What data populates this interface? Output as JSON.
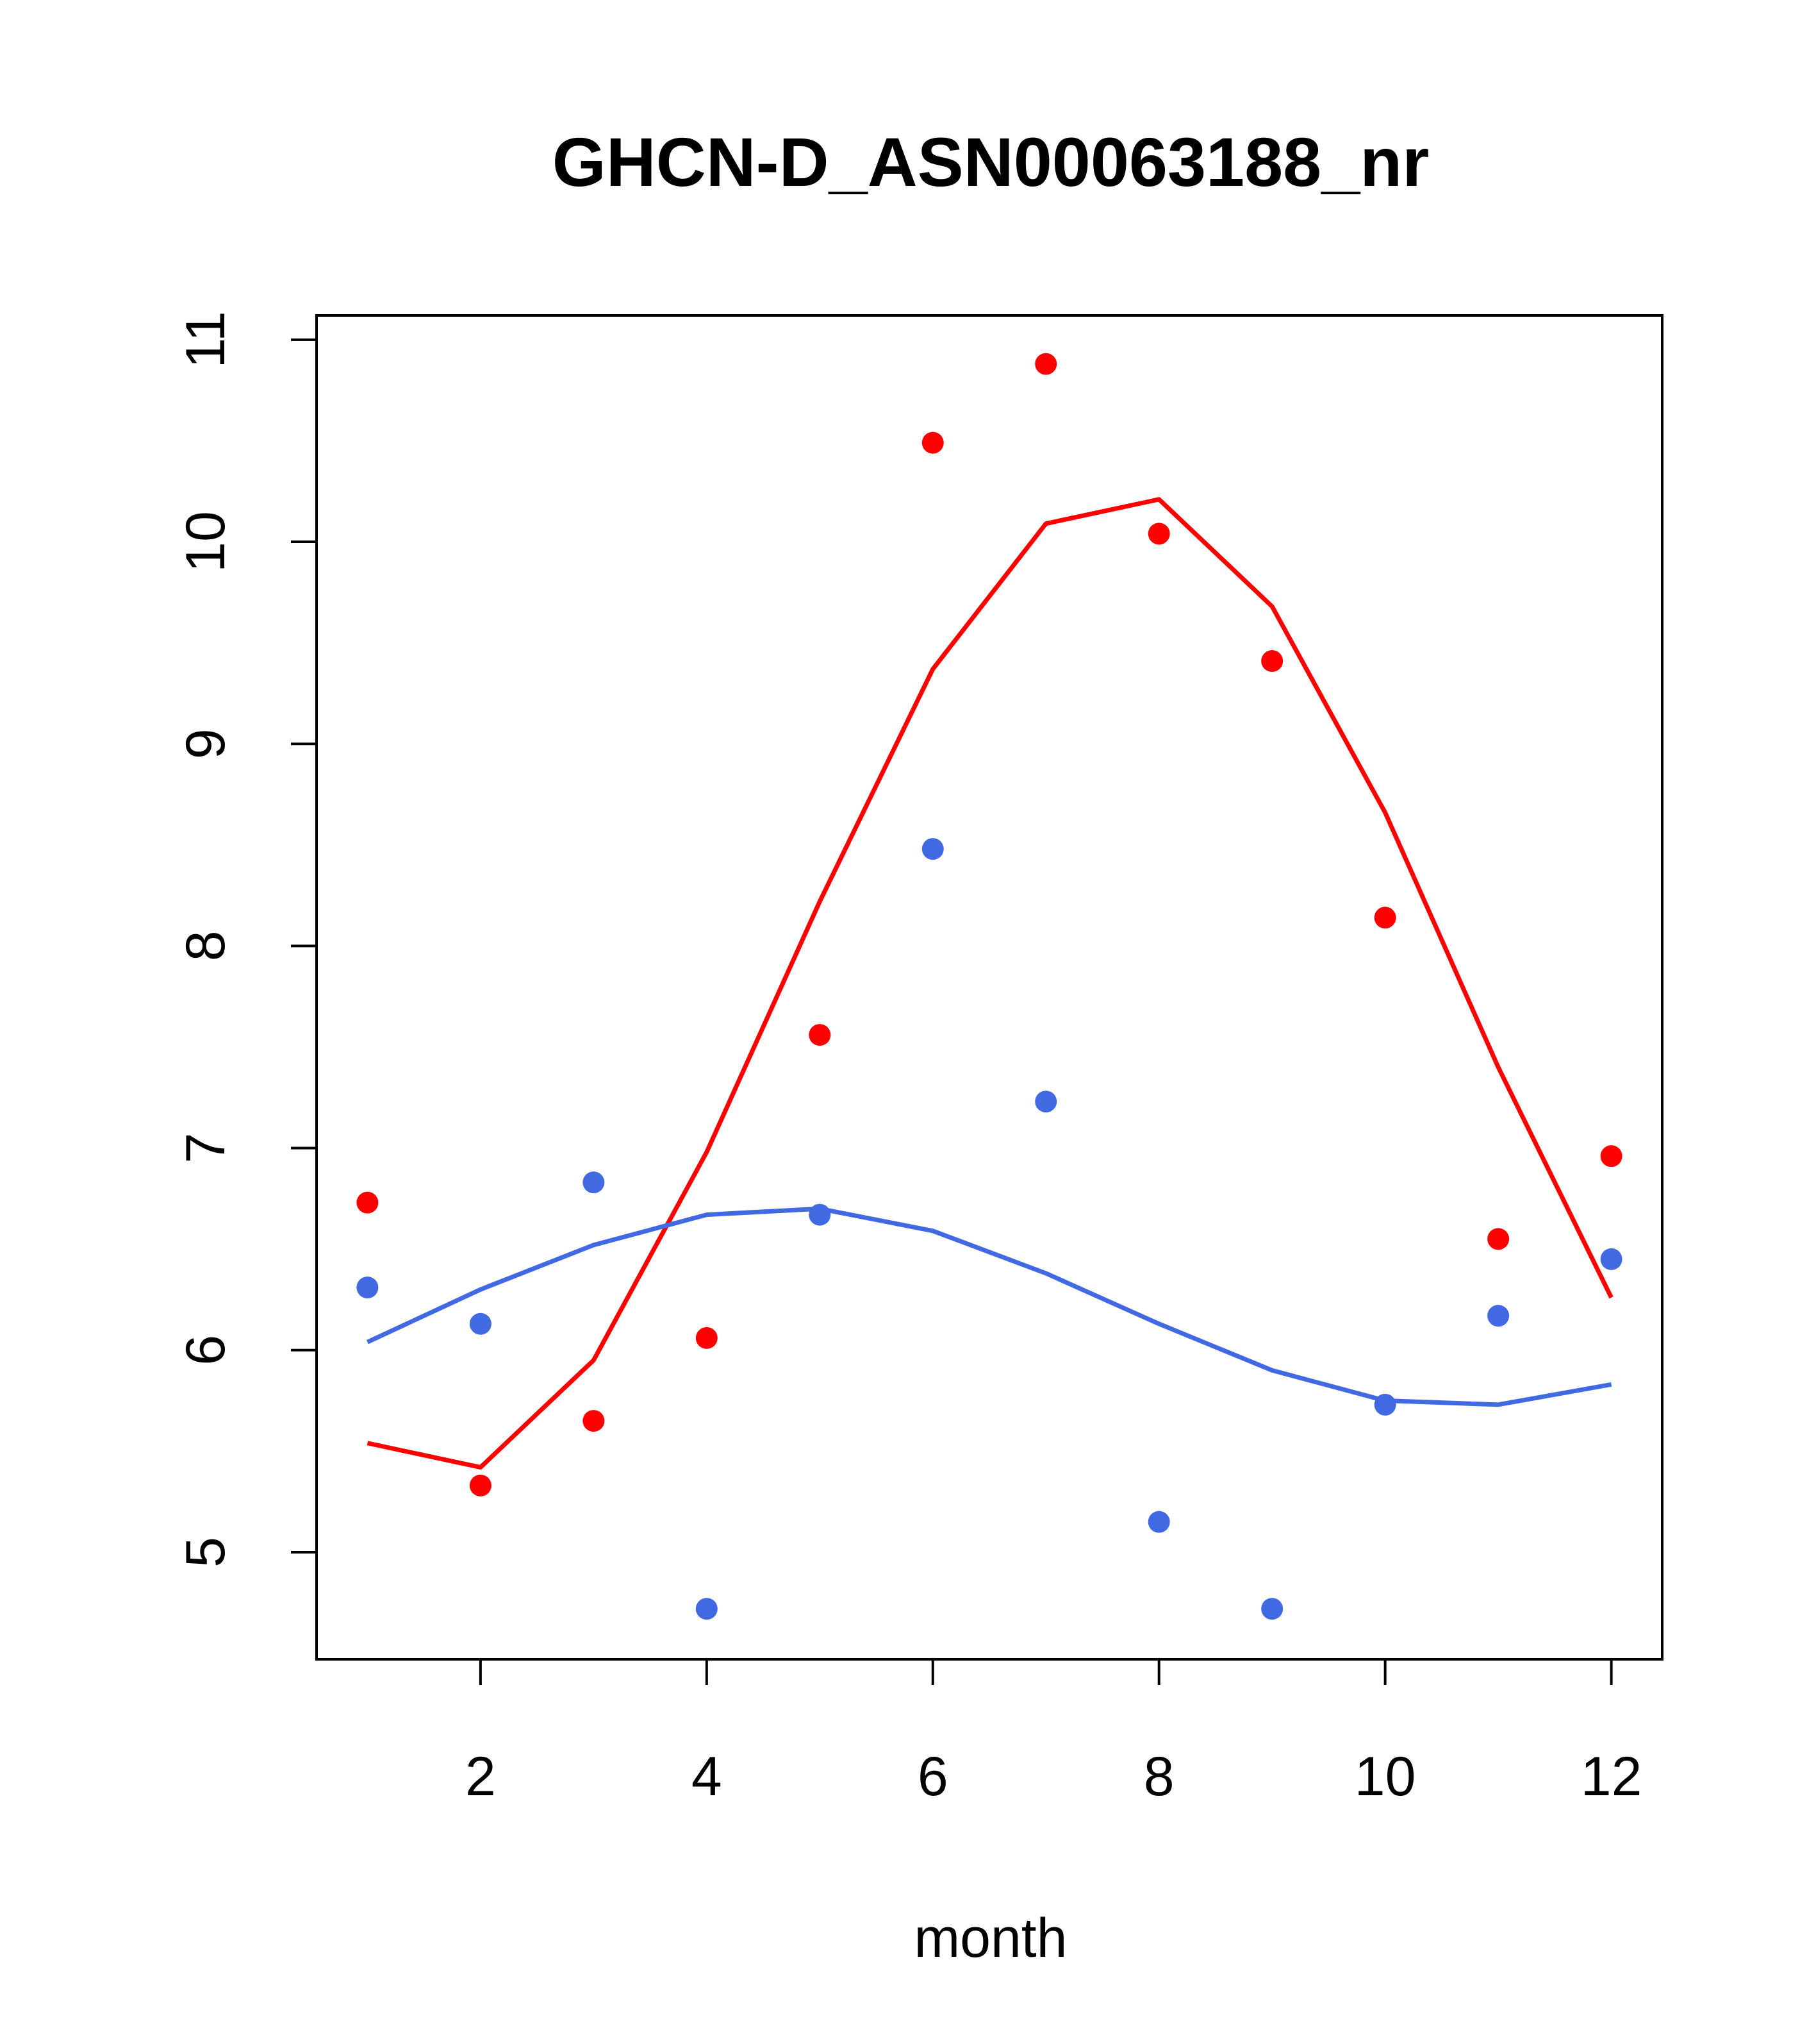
{
  "chart_data": {
    "type": "scatter",
    "title": "GHCN-D_ASN00063188_nr",
    "xlabel": "month",
    "ylabel": "",
    "xlim": [
      0.55,
      12.45
    ],
    "ylim": [
      4.47,
      11.12
    ],
    "x_ticks": [
      "2",
      "4",
      "6",
      "8",
      "10",
      "12"
    ],
    "y_ticks": [
      "5",
      "6",
      "7",
      "8",
      "9",
      "10",
      "11"
    ],
    "grid": false,
    "legend": "none",
    "x": [
      1,
      2,
      3,
      4,
      5,
      6,
      7,
      8,
      9,
      10,
      11,
      12
    ],
    "series": [
      {
        "color": "#ff0000",
        "points": [
          6.73,
          5.33,
          5.65,
          6.06,
          7.56,
          10.49,
          10.88,
          10.04,
          9.41,
          8.14,
          6.55,
          6.96
        ],
        "line": [
          5.54,
          5.42,
          5.95,
          6.98,
          8.22,
          9.37,
          10.09,
          10.21,
          9.68,
          8.66,
          7.4,
          6.26
        ]
      },
      {
        "color": "#4169e1",
        "points": [
          6.31,
          6.13,
          6.83,
          4.72,
          6.67,
          8.48,
          7.23,
          5.15,
          4.72,
          5.73,
          6.17,
          6.45
        ],
        "line": [
          6.04,
          6.3,
          6.52,
          6.67,
          6.7,
          6.59,
          6.38,
          6.13,
          5.9,
          5.75,
          5.73,
          5.83
        ]
      }
    ]
  }
}
